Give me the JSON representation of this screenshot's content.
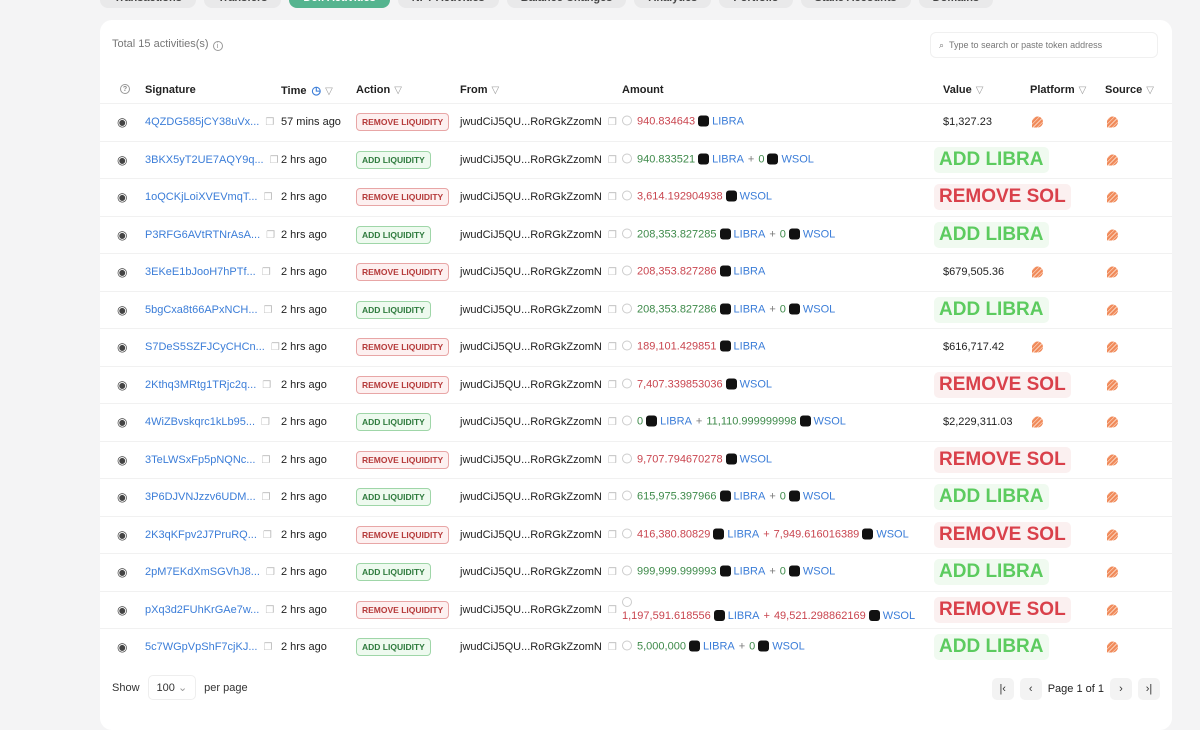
{
  "tabs": [
    "Transactions",
    "Transfers",
    "Defi Activities",
    "NFT Activities",
    "Balance Changes",
    "Analytics",
    "Portfolio",
    "Stake Accounts",
    "Domains"
  ],
  "active_tab": 2,
  "total": "Total 15 activities(s)",
  "search_placeholder": "Type to search or paste token address",
  "columns": {
    "signature": "Signature",
    "time": "Time",
    "action": "Action",
    "from": "From",
    "amount": "Amount",
    "value": "Value",
    "platform": "Platform",
    "source": "Source"
  },
  "colors": {
    "red": "#c9454f",
    "green": "#3e8a4a",
    "link": "#3b7dd8",
    "active_tab": "#55b48f"
  },
  "rows": [
    {
      "sig": "4QZDG585jCY38uVx...",
      "time": "57 mins ago",
      "action": "REMOVE LIQUIDITY",
      "type": "rem",
      "from": "jwudCiJ5QU...RoRGkZzomN",
      "amounts": [
        {
          "v": "940.834643",
          "t": "LIBRA"
        }
      ],
      "value": "$1,327.23"
    },
    {
      "sig": "3BKX5yT2UE7AQY9q...",
      "time": "2 hrs ago",
      "action": "ADD LIQUIDITY",
      "type": "add",
      "from": "jwudCiJ5QU...RoRGkZzomN",
      "amounts": [
        {
          "v": "940.833521",
          "t": "LIBRA"
        },
        {
          "v": "0",
          "t": "WSOL"
        }
      ],
      "overlay": "ADD LIBRA"
    },
    {
      "sig": "1oQCKjLoiXVEVmqT...",
      "time": "2 hrs ago",
      "action": "REMOVE LIQUIDITY",
      "type": "rem",
      "from": "jwudCiJ5QU...RoRGkZzomN",
      "amounts": [
        {
          "v": "3,614.192904938",
          "t": "WSOL"
        }
      ],
      "overlay": "REMOVE SOL"
    },
    {
      "sig": "P3RFG6AVtRTNrAsA...",
      "time": "2 hrs ago",
      "action": "ADD LIQUIDITY",
      "type": "add",
      "from": "jwudCiJ5QU...RoRGkZzomN",
      "amounts": [
        {
          "v": "208,353.827285",
          "t": "LIBRA"
        },
        {
          "v": "0",
          "t": "WSOL"
        }
      ],
      "overlay": "ADD LIBRA"
    },
    {
      "sig": "3EKeE1bJooH7hPTf...",
      "time": "2 hrs ago",
      "action": "REMOVE LIQUIDITY",
      "type": "rem",
      "from": "jwudCiJ5QU...RoRGkZzomN",
      "amounts": [
        {
          "v": "208,353.827286",
          "t": "LIBRA"
        }
      ],
      "value": "$679,505.36"
    },
    {
      "sig": "5bgCxa8t66APxNCH...",
      "time": "2 hrs ago",
      "action": "ADD LIQUIDITY",
      "type": "add",
      "from": "jwudCiJ5QU...RoRGkZzomN",
      "amounts": [
        {
          "v": "208,353.827286",
          "t": "LIBRA"
        },
        {
          "v": "0",
          "t": "WSOL"
        }
      ],
      "overlay": "ADD LIBRA"
    },
    {
      "sig": "S7DeS5SZFJCyCHCn...",
      "time": "2 hrs ago",
      "action": "REMOVE LIQUIDITY",
      "type": "rem",
      "from": "jwudCiJ5QU...RoRGkZzomN",
      "amounts": [
        {
          "v": "189,101.429851",
          "t": "LIBRA"
        }
      ],
      "value": "$616,717.42"
    },
    {
      "sig": "2Kthq3MRtg1TRjc2q...",
      "time": "2 hrs ago",
      "action": "REMOVE LIQUIDITY",
      "type": "rem",
      "from": "jwudCiJ5QU...RoRGkZzomN",
      "amounts": [
        {
          "v": "7,407.339853036",
          "t": "WSOL"
        }
      ],
      "overlay": "REMOVE SOL"
    },
    {
      "sig": "4WiZBvskqrc1kLb95...",
      "time": "2 hrs ago",
      "action": "ADD LIQUIDITY",
      "type": "add",
      "from": "jwudCiJ5QU...RoRGkZzomN",
      "amounts": [
        {
          "v": "0",
          "t": "LIBRA"
        },
        {
          "v": "11,110.999999998",
          "t": "WSOL"
        }
      ],
      "value": "$2,229,311.03"
    },
    {
      "sig": "3TeLWSxFp5pNQNc...",
      "time": "2 hrs ago",
      "action": "REMOVE LIQUIDITY",
      "type": "rem",
      "from": "jwudCiJ5QU...RoRGkZzomN",
      "amounts": [
        {
          "v": "9,707.794670278",
          "t": "WSOL"
        }
      ],
      "overlay": "REMOVE SOL"
    },
    {
      "sig": "3P6DJVNJzzv6UDM...",
      "time": "2 hrs ago",
      "action": "ADD LIQUIDITY",
      "type": "add",
      "from": "jwudCiJ5QU...RoRGkZzomN",
      "amounts": [
        {
          "v": "615,975.397966",
          "t": "LIBRA"
        },
        {
          "v": "0",
          "t": "WSOL"
        }
      ],
      "overlay": "ADD LIBRA"
    },
    {
      "sig": "2K3qKFpv2J7PruRQ...",
      "time": "2 hrs ago",
      "action": "REMOVE LIQUIDITY",
      "type": "rem",
      "from": "jwudCiJ5QU...RoRGkZzomN",
      "amounts": [
        {
          "v": "416,380.80829",
          "t": "LIBRA"
        },
        {
          "v": "7,949.616016389",
          "t": "WSOL"
        }
      ],
      "overlay": "REMOVE SOL"
    },
    {
      "sig": "2pM7EKdXmSGVhJ8...",
      "time": "2 hrs ago",
      "action": "ADD LIQUIDITY",
      "type": "add",
      "from": "jwudCiJ5QU...RoRGkZzomN",
      "amounts": [
        {
          "v": "999,999.999993",
          "t": "LIBRA"
        },
        {
          "v": "0",
          "t": "WSOL"
        }
      ],
      "overlay": "ADD LIBRA"
    },
    {
      "sig": "pXq3d2FUhKrGAe7w...",
      "time": "2 hrs ago",
      "action": "REMOVE LIQUIDITY",
      "type": "rem",
      "from": "jwudCiJ5QU...RoRGkZzomN",
      "amounts": [
        {
          "v": "1,197,591.618556",
          "t": "LIBRA"
        },
        {
          "v": "49,521.298862169",
          "t": "WSOL"
        }
      ],
      "overlay": "REMOVE SOL"
    },
    {
      "sig": "5c7WGpVpShF7cjKJ...",
      "time": "2 hrs ago",
      "action": "ADD LIQUIDITY",
      "type": "add",
      "from": "jwudCiJ5QU...RoRGkZzomN",
      "amounts": [
        {
          "v": "5,000,000",
          "t": "LIBRA"
        },
        {
          "v": "0",
          "t": "WSOL"
        }
      ],
      "overlay": "ADD LIBRA"
    }
  ],
  "footer": {
    "show": "Show",
    "per_page_value": "100",
    "per_page": "per page",
    "page": "Page 1 of 1"
  }
}
